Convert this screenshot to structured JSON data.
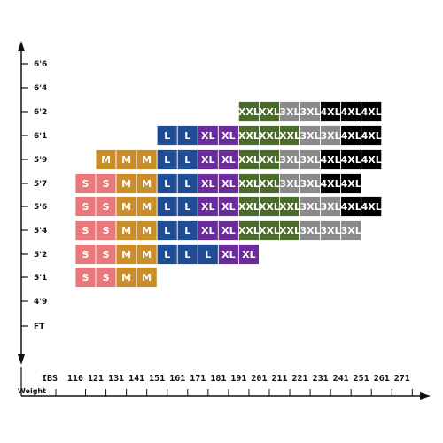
{
  "chart_data": {
    "type": "heatmap",
    "title": "",
    "xlabel": "Weight",
    "ylabel": "",
    "x_unit_label": "IBS",
    "y_unit_label": "FT",
    "x_ticks": [
      "110",
      "121",
      "131",
      "141",
      "151",
      "161",
      "171",
      "181",
      "191",
      "201",
      "211",
      "221",
      "231",
      "241",
      "251",
      "261",
      "271"
    ],
    "y_ticks": [
      "6'6",
      "6'4",
      "6'2",
      "6'1",
      "5'9",
      "5'7",
      "5'6",
      "5'4",
      "5'2",
      "5'1",
      "4'9"
    ],
    "colors": {
      "S": "#e8787b",
      "M": "#c98d2a",
      "L": "#1f4c94",
      "XL": "#6a2c9a",
      "XXL": "#4a6b2a",
      "3XL": "#8a8a8a",
      "4XL": "#000000"
    },
    "rows": [
      {
        "height": "6'2",
        "start": "191",
        "cells": [
          "XXL",
          "XXL",
          "3XL",
          "3XL",
          "4XL",
          "4XL",
          "4XL"
        ]
      },
      {
        "height": "6'1",
        "start": "151",
        "cells": [
          "L",
          "L",
          "XL",
          "XL",
          "XXL",
          "XXL",
          "XXL",
          "3XL",
          "3XL",
          "4XL",
          "4XL"
        ]
      },
      {
        "height": "5'9",
        "start": "121",
        "cells": [
          "M",
          "M",
          "M",
          "L",
          "L",
          "XL",
          "XL",
          "XXL",
          "XXL",
          "3XL",
          "3XL",
          "4XL",
          "4XL",
          "4XL"
        ]
      },
      {
        "height": "5'7",
        "start": "110",
        "cells": [
          "S",
          "S",
          "M",
          "M",
          "L",
          "L",
          "XL",
          "XL",
          "XXL",
          "XXL",
          "3XL",
          "3XL",
          "4XL",
          "4XL"
        ]
      },
      {
        "height": "5'6",
        "start": "110",
        "cells": [
          "S",
          "S",
          "M",
          "M",
          "L",
          "L",
          "XL",
          "XL",
          "XXL",
          "XXL",
          "XXL",
          "3XL",
          "3XL",
          "4XL",
          "4XL"
        ]
      },
      {
        "height": "5'4",
        "start": "110",
        "cells": [
          "S",
          "S",
          "M",
          "M",
          "L",
          "L",
          "XL",
          "XL",
          "XXL",
          "XXL",
          "XXL",
          "3XL",
          "3XL",
          "3XL"
        ]
      },
      {
        "height": "5'2",
        "start": "110",
        "cells": [
          "S",
          "S",
          "M",
          "M",
          "L",
          "L",
          "L",
          "XL",
          "XL"
        ]
      },
      {
        "height": "5'1",
        "start": "110",
        "cells": [
          "S",
          "S",
          "M",
          "M"
        ]
      }
    ]
  }
}
